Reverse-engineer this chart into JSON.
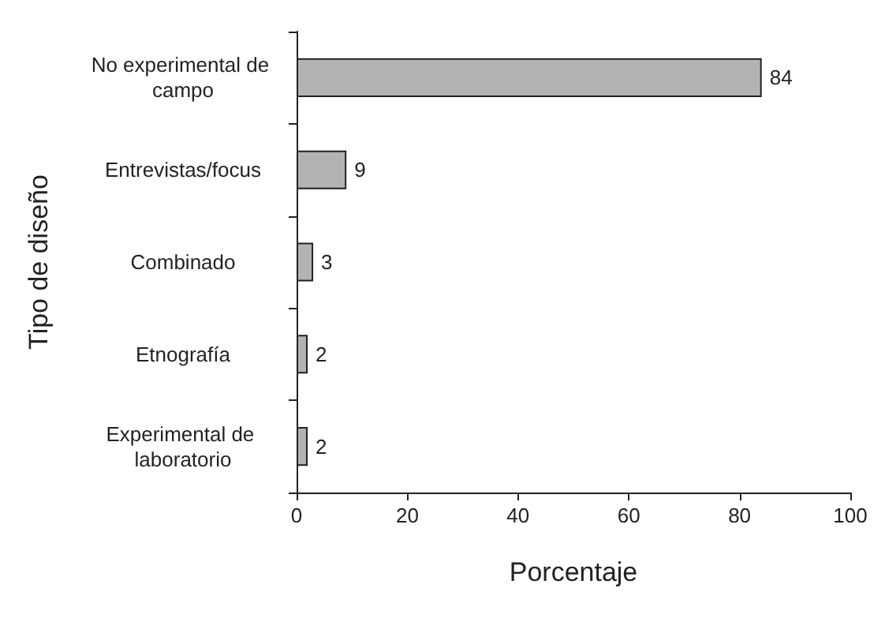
{
  "chart_data": {
    "type": "bar",
    "orientation": "horizontal",
    "categories": [
      "No experimental de campo",
      "Entrevistas/focus",
      "Combinado",
      "Etnografía",
      "Experimental de laboratorio"
    ],
    "values": [
      84,
      9,
      3,
      2,
      2
    ],
    "color": "#b3b3b3",
    "xlabel": "Porcentaje",
    "ylabel": "Tipo de diseño",
    "xlim": [
      0,
      100
    ],
    "xticks": [
      0,
      20,
      40,
      60,
      80,
      100
    ],
    "data_labels": true,
    "grid": false
  }
}
